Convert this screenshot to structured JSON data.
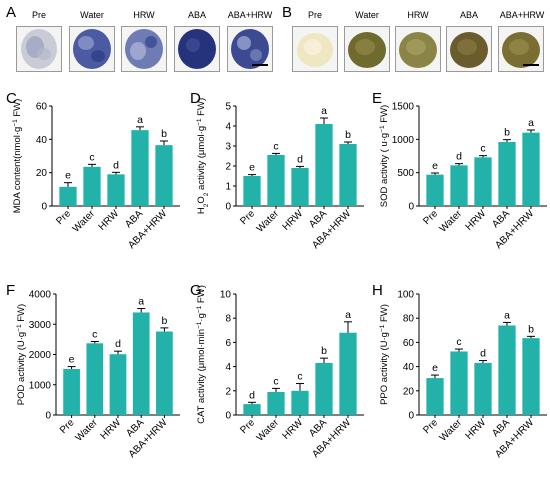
{
  "panels": {
    "A": {
      "letter": "A",
      "labels": [
        "Pre",
        "Water",
        "HRW",
        "ABA",
        "ABA+HRW"
      ]
    },
    "B": {
      "letter": "B",
      "labels": [
        "Pre",
        "Water",
        "HRW",
        "ABA",
        "ABA+HRW"
      ]
    }
  },
  "colors": {
    "bar": "#22b2aa",
    "axis": "#000000",
    "stain_blue": "#2b3d8f",
    "seed_green": "#6f6a2e",
    "seed_pale": "#efe6c2"
  },
  "chart_data": [
    {
      "letter": "C",
      "type": "bar",
      "categories": [
        "Pre",
        "Water",
        "HRW",
        "ABA",
        "ABA+HRW"
      ],
      "values": [
        11.5,
        23.5,
        19,
        45.5,
        36.5
      ],
      "errors": [
        2.5,
        1.5,
        1.2,
        2.0,
        2.5
      ],
      "letters": [
        "e",
        "c",
        "d",
        "a",
        "b"
      ],
      "ylabel_parts": [
        "MDA content(nmol·g",
        "−1",
        " FW)"
      ],
      "ylim": [
        0,
        60
      ],
      "yticks": [
        0,
        20,
        40,
        60
      ]
    },
    {
      "letter": "D",
      "type": "bar",
      "categories": [
        "Pre",
        "Water",
        "HRW",
        "ABA",
        "ABA+HRW"
      ],
      "values": [
        1.5,
        2.55,
        1.9,
        4.1,
        3.1
      ],
      "errors": [
        0.07,
        0.08,
        0.08,
        0.3,
        0.1
      ],
      "letters": [
        "e",
        "c",
        "d",
        "a",
        "b"
      ],
      "ylabel_parts": [
        "H",
        "2",
        "O",
        "2",
        " activity (μmol·g",
        "−1",
        " FW)"
      ],
      "ylim": [
        0,
        5
      ],
      "yticks": [
        0,
        1,
        2,
        3,
        4,
        5
      ]
    },
    {
      "letter": "E",
      "type": "bar",
      "categories": [
        "Pre",
        "Water",
        "HRW",
        "ABA",
        "ABA+HRW"
      ],
      "values": [
        470,
        610,
        730,
        960,
        1100
      ],
      "errors": [
        25,
        25,
        25,
        35,
        40
      ],
      "letters": [
        "e",
        "d",
        "c",
        "b",
        "a"
      ],
      "ylabel_parts": [
        "SOD activity ( u·g",
        "−1",
        " FW)"
      ],
      "ylim": [
        0,
        1500
      ],
      "yticks": [
        0,
        500,
        1000,
        1500
      ]
    },
    {
      "letter": "F",
      "type": "bar",
      "categories": [
        "Pre",
        "Water",
        "HRW",
        "ABA",
        "ABA+HRW"
      ],
      "values": [
        1520,
        2370,
        2010,
        3390,
        2760
      ],
      "errors": [
        80,
        60,
        100,
        130,
        120
      ],
      "letters": [
        "e",
        "c",
        "d",
        "a",
        "b"
      ],
      "ylabel_parts": [
        "POD activity (U·g",
        "−1",
        " FW)"
      ],
      "ylim": [
        0,
        4000
      ],
      "yticks": [
        0,
        1000,
        2000,
        3000,
        4000
      ]
    },
    {
      "letter": "G",
      "type": "bar",
      "categories": [
        "Pre",
        "Water",
        "HRW",
        "ABA",
        "ABA+HRW"
      ],
      "values": [
        0.9,
        1.9,
        2.0,
        4.3,
        6.8
      ],
      "errors": [
        0.15,
        0.3,
        0.6,
        0.4,
        0.9
      ],
      "letters": [
        "d",
        "c",
        "c",
        "b",
        "a"
      ],
      "ylabel_parts": [
        "CAT activity (μmol·min",
        "−1",
        "·g",
        "−1",
        " FW)"
      ],
      "ylim": [
        0,
        10
      ],
      "yticks": [
        0,
        2,
        4,
        6,
        8,
        10
      ]
    },
    {
      "letter": "H",
      "type": "bar",
      "categories": [
        "Pre",
        "Water",
        "HRW",
        "ABA",
        "ABA+HRW"
      ],
      "values": [
        30.5,
        52.5,
        43,
        74,
        63.5
      ],
      "errors": [
        2.5,
        2,
        2,
        2.5,
        1.5
      ],
      "letters": [
        "e",
        "c",
        "d",
        "a",
        "b"
      ],
      "ylabel_parts": [
        "PPO activity (U·g",
        "−1",
        " FW)"
      ],
      "ylim": [
        0,
        100
      ],
      "yticks": [
        0,
        20,
        40,
        60,
        80,
        100
      ]
    }
  ]
}
